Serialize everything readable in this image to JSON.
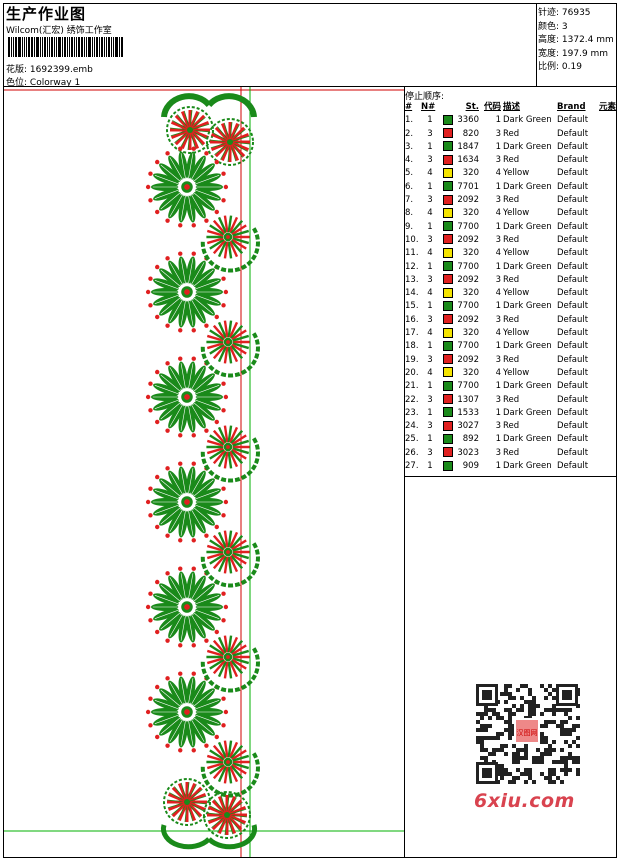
{
  "header": {
    "title": "生产作业图",
    "company": "Wilcom(汇宏) 绣饰工作室",
    "design_label": "花版:",
    "design_file": "1692399.emb",
    "color_label": "色位:",
    "colorway": "Colorway 1"
  },
  "meta": [
    {
      "label": "针迹:",
      "value": "76935"
    },
    {
      "label": "颜色:",
      "value": "3"
    },
    {
      "label": "高度:",
      "value": "1372.4 mm"
    },
    {
      "label": "宽度:",
      "value": "197.9 mm"
    },
    {
      "label": "比例:",
      "value": "0.19"
    }
  ],
  "stop_sequence": {
    "title": "停止顺序:",
    "headers": [
      "#",
      "N#",
      "St.",
      "代码",
      "描述",
      "Brand",
      "元素"
    ],
    "rows": [
      {
        "n": "1.",
        "needle": "1",
        "color": "#1a8a1a",
        "st": "3360",
        "code": "1",
        "desc": "Dark Green",
        "brand": "Default"
      },
      {
        "n": "2.",
        "needle": "3",
        "color": "#e02020",
        "st": "820",
        "code": "3",
        "desc": "Red",
        "brand": "Default"
      },
      {
        "n": "3.",
        "needle": "1",
        "color": "#1a8a1a",
        "st": "1847",
        "code": "1",
        "desc": "Dark Green",
        "brand": "Default"
      },
      {
        "n": "4.",
        "needle": "3",
        "color": "#e02020",
        "st": "1634",
        "code": "3",
        "desc": "Red",
        "brand": "Default"
      },
      {
        "n": "5.",
        "needle": "4",
        "color": "#f4e400",
        "st": "320",
        "code": "4",
        "desc": "Yellow",
        "brand": "Default"
      },
      {
        "n": "6.",
        "needle": "1",
        "color": "#1a8a1a",
        "st": "7701",
        "code": "1",
        "desc": "Dark Green",
        "brand": "Default"
      },
      {
        "n": "7.",
        "needle": "3",
        "color": "#e02020",
        "st": "2092",
        "code": "3",
        "desc": "Red",
        "brand": "Default"
      },
      {
        "n": "8.",
        "needle": "4",
        "color": "#f4e400",
        "st": "320",
        "code": "4",
        "desc": "Yellow",
        "brand": "Default"
      },
      {
        "n": "9.",
        "needle": "1",
        "color": "#1a8a1a",
        "st": "7700",
        "code": "1",
        "desc": "Dark Green",
        "brand": "Default"
      },
      {
        "n": "10.",
        "needle": "3",
        "color": "#e02020",
        "st": "2092",
        "code": "3",
        "desc": "Red",
        "brand": "Default"
      },
      {
        "n": "11.",
        "needle": "4",
        "color": "#f4e400",
        "st": "320",
        "code": "4",
        "desc": "Yellow",
        "brand": "Default"
      },
      {
        "n": "12.",
        "needle": "1",
        "color": "#1a8a1a",
        "st": "7700",
        "code": "1",
        "desc": "Dark Green",
        "brand": "Default"
      },
      {
        "n": "13.",
        "needle": "3",
        "color": "#e02020",
        "st": "2092",
        "code": "3",
        "desc": "Red",
        "brand": "Default"
      },
      {
        "n": "14.",
        "needle": "4",
        "color": "#f4e400",
        "st": "320",
        "code": "4",
        "desc": "Yellow",
        "brand": "Default"
      },
      {
        "n": "15.",
        "needle": "1",
        "color": "#1a8a1a",
        "st": "7700",
        "code": "1",
        "desc": "Dark Green",
        "brand": "Default"
      },
      {
        "n": "16.",
        "needle": "3",
        "color": "#e02020",
        "st": "2092",
        "code": "3",
        "desc": "Red",
        "brand": "Default"
      },
      {
        "n": "17.",
        "needle": "4",
        "color": "#f4e400",
        "st": "320",
        "code": "4",
        "desc": "Yellow",
        "brand": "Default"
      },
      {
        "n": "18.",
        "needle": "1",
        "color": "#1a8a1a",
        "st": "7700",
        "code": "1",
        "desc": "Dark Green",
        "brand": "Default"
      },
      {
        "n": "19.",
        "needle": "3",
        "color": "#e02020",
        "st": "2092",
        "code": "3",
        "desc": "Red",
        "brand": "Default"
      },
      {
        "n": "20.",
        "needle": "4",
        "color": "#f4e400",
        "st": "320",
        "code": "4",
        "desc": "Yellow",
        "brand": "Default"
      },
      {
        "n": "21.",
        "needle": "1",
        "color": "#1a8a1a",
        "st": "7700",
        "code": "1",
        "desc": "Dark Green",
        "brand": "Default"
      },
      {
        "n": "22.",
        "needle": "3",
        "color": "#e02020",
        "st": "1307",
        "code": "3",
        "desc": "Red",
        "brand": "Default"
      },
      {
        "n": "23.",
        "needle": "1",
        "color": "#1a8a1a",
        "st": "1533",
        "code": "1",
        "desc": "Dark Green",
        "brand": "Default"
      },
      {
        "n": "24.",
        "needle": "3",
        "color": "#e02020",
        "st": "3027",
        "code": "3",
        "desc": "Red",
        "brand": "Default"
      },
      {
        "n": "25.",
        "needle": "1",
        "color": "#1a8a1a",
        "st": "892",
        "code": "1",
        "desc": "Dark Green",
        "brand": "Default"
      },
      {
        "n": "26.",
        "needle": "3",
        "color": "#e02020",
        "st": "3023",
        "code": "3",
        "desc": "Red",
        "brand": "Default"
      },
      {
        "n": "27.",
        "needle": "1",
        "color": "#1a8a1a",
        "st": "909",
        "code": "1",
        "desc": "Dark Green",
        "brand": "Default"
      }
    ]
  },
  "watermark": {
    "brand_text": "6xiu.com",
    "qr_stamp": "汉图网"
  },
  "colors": {
    "dark_green": "#1a8a1a",
    "red": "#e02020",
    "yellow": "#f4e400",
    "guide_red": "#d00000",
    "guide_green": "#00b000"
  }
}
